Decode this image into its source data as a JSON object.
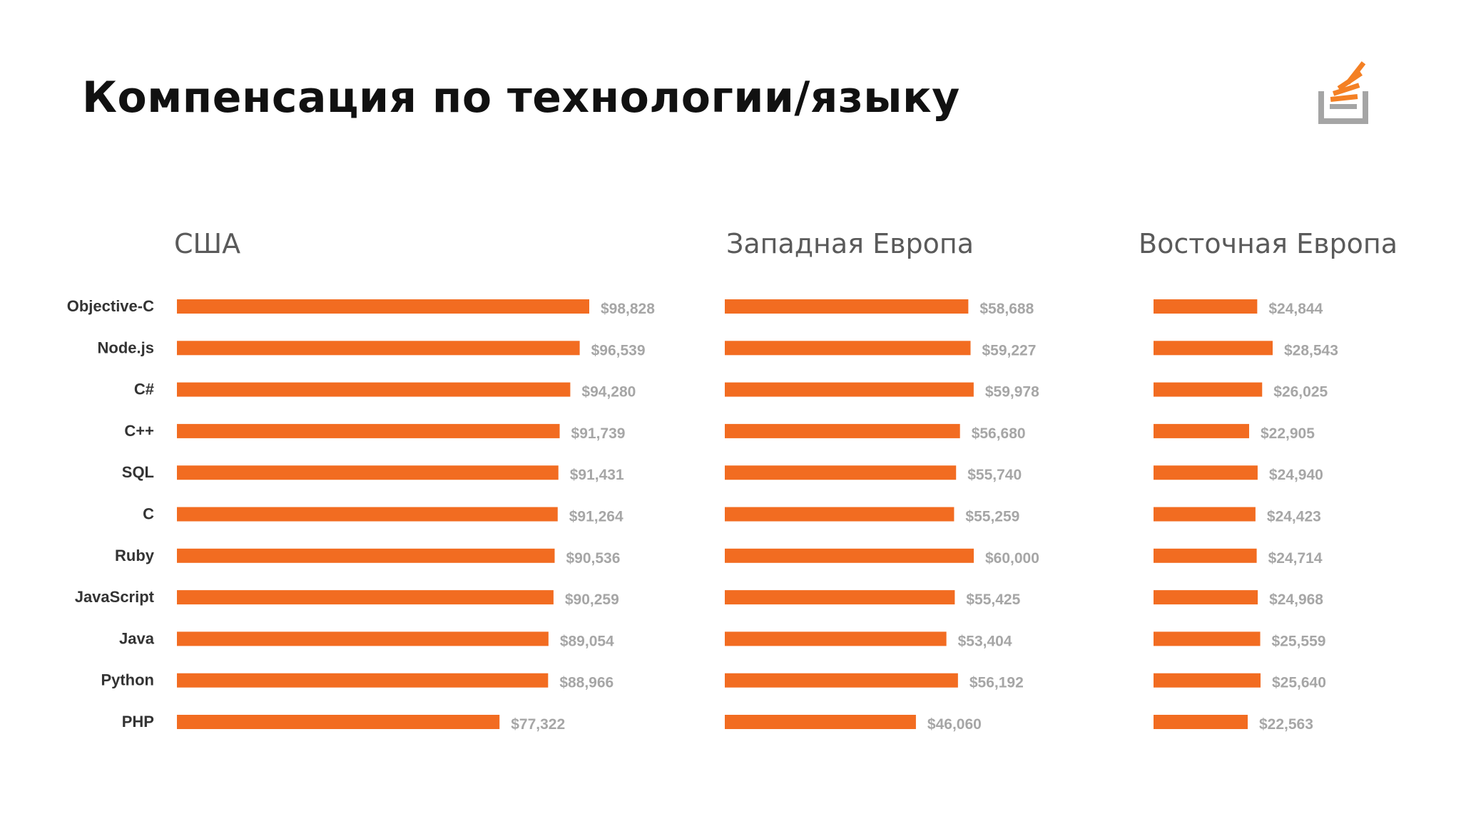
{
  "slide": {
    "title": "Компенсация по технологии/языку"
  },
  "logo": {
    "icon": "stack-overflow-logo-icon",
    "tray_color": "#a5a5a5",
    "stack_color": "#f48024"
  },
  "colors": {
    "bar": "#f26c21",
    "value_text": "#a6a6a6",
    "category_text": "#333333",
    "panel_title": "#5a5a5a"
  },
  "chart_data": [
    {
      "type": "bar",
      "orientation": "horizontal",
      "title": "США",
      "categories": [
        "Objective-C",
        "Node.js",
        "C#",
        "C++",
        "SQL",
        "C",
        "Ruby",
        "JavaScript",
        "Java",
        "Python",
        "PHP"
      ],
      "values": [
        98828,
        96539,
        94280,
        91739,
        91431,
        91264,
        90536,
        90259,
        89054,
        88966,
        77322
      ],
      "value_labels": [
        "$98,828",
        "$96,539",
        "$94,280",
        "$91,739",
        "$91,431",
        "$91,264",
        "$90,536",
        "$90,259",
        "$89,054",
        "$88,966",
        "$77,322"
      ],
      "xlim": [
        0,
        98828
      ],
      "grid": false,
      "legend": "none"
    },
    {
      "type": "bar",
      "orientation": "horizontal",
      "title": "Западная Европа",
      "categories": [
        "Objective-C",
        "Node.js",
        "C#",
        "C++",
        "SQL",
        "C",
        "Ruby",
        "JavaScript",
        "Java",
        "Python",
        "PHP"
      ],
      "values": [
        58688,
        59227,
        59978,
        56680,
        55740,
        55259,
        60000,
        55425,
        53404,
        56192,
        46060
      ],
      "value_labels": [
        "$58,688",
        "$59,227",
        "$59,978",
        "$56,680",
        "$55,740",
        "$55,259",
        "$60,000",
        "$55,425",
        "$53,404",
        "$56,192",
        "$46,060"
      ],
      "xlim": [
        0,
        60000
      ],
      "grid": false,
      "legend": "none"
    },
    {
      "type": "bar",
      "orientation": "horizontal",
      "title": "Восточная Европа",
      "categories": [
        "Objective-C",
        "Node.js",
        "C#",
        "C++",
        "SQL",
        "C",
        "Ruby",
        "JavaScript",
        "Java",
        "Python",
        "PHP"
      ],
      "values": [
        24844,
        28543,
        26025,
        22905,
        24940,
        24423,
        24714,
        24968,
        25559,
        25640,
        22563
      ],
      "value_labels": [
        "$24,844",
        "$28,543",
        "$26,025",
        "$22,905",
        "$24,940",
        "$24,423",
        "$24,714",
        "$24,968",
        "$25,559",
        "$25,640",
        "$22,563"
      ],
      "xlim": [
        0,
        28543
      ],
      "grid": false,
      "legend": "none"
    }
  ]
}
